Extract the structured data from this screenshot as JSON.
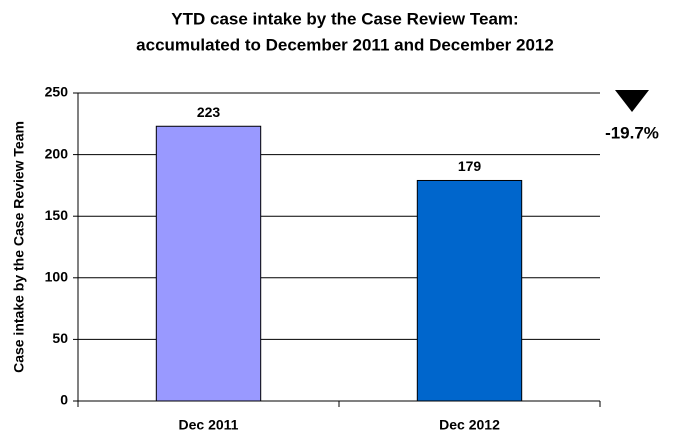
{
  "chart_data": {
    "type": "bar",
    "title": [
      "YTD case intake by the Case Review Team:",
      "accumulated to December 2011 and December 2012"
    ],
    "ylabel": "Case intake by the Case Review Team",
    "categories": [
      "Dec 2011",
      "Dec 2012"
    ],
    "values": [
      223,
      179
    ],
    "colors": [
      "#9999ff",
      "#0066cc"
    ],
    "ylim": [
      0,
      250
    ],
    "yticks": [
      0,
      50,
      100,
      150,
      200,
      250
    ],
    "grid": true,
    "annotation": "-19.7%"
  }
}
